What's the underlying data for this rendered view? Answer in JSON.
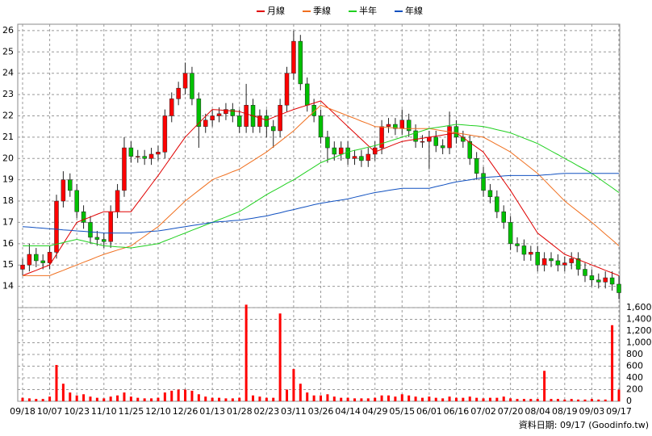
{
  "chart_data": {
    "type": "candlestick",
    "legend": "top",
    "footer": "資料日期: 09/17 (Goodinfo.tw)",
    "categories": [
      "09/18",
      null,
      null,
      null,
      "10/07",
      null,
      null,
      null,
      "10/23",
      null,
      null,
      null,
      "11/10",
      null,
      null,
      null,
      "11/25",
      null,
      null,
      null,
      "12/10",
      null,
      null,
      null,
      "12/26",
      null,
      null,
      null,
      "01/13",
      null,
      null,
      null,
      "01/28",
      null,
      null,
      null,
      "02/23",
      null,
      null,
      null,
      "03/11",
      null,
      null,
      null,
      "03/26",
      null,
      null,
      null,
      "04/14",
      null,
      null,
      null,
      "04/29",
      null,
      null,
      null,
      "05/15",
      null,
      null,
      null,
      "06/01",
      null,
      null,
      null,
      "06/16",
      null,
      null,
      null,
      "07/02",
      null,
      null,
      null,
      "07/20",
      null,
      null,
      null,
      "08/04",
      null,
      null,
      null,
      "08/19",
      null,
      null,
      null,
      "09/03",
      null,
      null,
      null,
      "09/17"
    ],
    "open": [
      14.8,
      15.0,
      15.5,
      15.2,
      15.1,
      15.6,
      18.0,
      19.0,
      18.5,
      17.5,
      17.0,
      16.3,
      16.2,
      16.1,
      17.5,
      18.5,
      20.5,
      20.1,
      20.1,
      20.0,
      20.2,
      20.3,
      22.0,
      22.8,
      23.3,
      24.0,
      22.8,
      21.5,
      21.8,
      22.0,
      22.1,
      22.3,
      22.0,
      21.5,
      22.5,
      21.5,
      22.0,
      21.5,
      21.3,
      22.5,
      24.0,
      25.5,
      23.5,
      22.5,
      22.0,
      21.0,
      20.5,
      20.2,
      20.5,
      20.0,
      20.1,
      19.9,
      20.2,
      20.5,
      21.5,
      21.6,
      21.4,
      21.8,
      21.3,
      20.8,
      20.8,
      21.0,
      20.6,
      20.5,
      21.5,
      21.0,
      20.8,
      20.0,
      19.3,
      18.5,
      18.2,
      17.5,
      17.0,
      16.0,
      15.9,
      15.5,
      15.6,
      15.0,
      15.3,
      15.2,
      15.0,
      15.1,
      15.3,
      14.8,
      14.5,
      14.3,
      14.2,
      14.4,
      14.1
    ],
    "high": [
      15.3,
      16.0,
      15.8,
      15.5,
      15.9,
      18.3,
      19.4,
      19.3,
      18.8,
      17.8,
      17.3,
      16.6,
      16.5,
      17.8,
      18.8,
      21.0,
      20.8,
      20.4,
      20.4,
      20.5,
      20.6,
      22.3,
      23.1,
      23.6,
      24.5,
      24.3,
      23.1,
      22.1,
      22.3,
      22.4,
      22.6,
      22.6,
      22.3,
      23.5,
      22.8,
      22.3,
      22.3,
      21.8,
      22.8,
      24.3,
      26.0,
      25.8,
      23.8,
      22.8,
      22.3,
      21.3,
      20.8,
      20.8,
      20.8,
      20.4,
      20.4,
      20.5,
      20.8,
      21.8,
      21.9,
      21.9,
      22.3,
      22.1,
      21.6,
      21.1,
      21.3,
      21.3,
      20.9,
      22.2,
      21.8,
      21.3,
      21.1,
      20.3,
      19.6,
      18.8,
      18.5,
      17.8,
      17.3,
      16.3,
      16.2,
      15.9,
      15.9,
      15.6,
      15.6,
      15.5,
      15.4,
      15.6,
      15.6,
      15.1,
      14.8,
      14.6,
      14.7,
      14.7,
      14.5
    ],
    "low": [
      14.5,
      14.7,
      14.9,
      14.8,
      14.8,
      15.3,
      17.7,
      18.2,
      17.2,
      16.7,
      16.0,
      15.9,
      15.8,
      15.8,
      17.2,
      18.2,
      19.8,
      19.8,
      19.7,
      19.7,
      19.9,
      20.0,
      21.7,
      22.5,
      23.0,
      22.5,
      20.5,
      21.2,
      21.5,
      21.7,
      21.8,
      21.7,
      21.2,
      21.2,
      21.2,
      21.2,
      21.0,
      20.5,
      21.0,
      22.2,
      23.7,
      23.2,
      22.2,
      21.7,
      20.7,
      19.8,
      19.9,
      19.9,
      19.7,
      19.7,
      19.6,
      19.6,
      19.9,
      20.2,
      21.2,
      21.1,
      21.1,
      21.0,
      20.5,
      20.5,
      19.5,
      20.3,
      20.2,
      20.2,
      20.7,
      20.5,
      19.7,
      19.0,
      18.2,
      17.9,
      17.2,
      16.7,
      15.7,
      15.6,
      15.2,
      15.2,
      14.7,
      14.7,
      14.9,
      14.7,
      14.7,
      14.8,
      14.5,
      14.2,
      14.0,
      13.9,
      13.9,
      13.8,
      13.4
    ],
    "close": [
      15.0,
      15.5,
      15.2,
      15.1,
      15.6,
      18.0,
      19.0,
      18.5,
      17.5,
      17.0,
      16.3,
      16.2,
      16.1,
      17.5,
      18.5,
      20.5,
      20.1,
      20.1,
      20.0,
      20.2,
      20.3,
      22.0,
      22.8,
      23.3,
      24.0,
      22.8,
      21.5,
      21.8,
      22.0,
      22.1,
      22.3,
      22.0,
      21.5,
      22.5,
      21.5,
      22.0,
      21.5,
      21.3,
      22.5,
      24.0,
      25.5,
      23.5,
      22.5,
      22.0,
      21.0,
      20.5,
      20.2,
      20.5,
      20.0,
      20.1,
      19.9,
      20.2,
      20.5,
      21.5,
      21.6,
      21.4,
      21.8,
      21.3,
      20.8,
      20.8,
      21.0,
      20.6,
      20.5,
      21.5,
      21.0,
      20.8,
      20.0,
      19.3,
      18.5,
      18.2,
      17.5,
      17.0,
      16.0,
      15.9,
      15.5,
      15.6,
      15.0,
      15.3,
      15.2,
      15.0,
      15.1,
      15.3,
      14.8,
      14.5,
      14.3,
      14.2,
      14.4,
      14.1,
      13.7
    ],
    "volume": [
      60,
      50,
      40,
      40,
      80,
      620,
      300,
      150,
      100,
      120,
      80,
      60,
      50,
      80,
      100,
      150,
      80,
      60,
      50,
      50,
      60,
      150,
      180,
      200,
      200,
      180,
      120,
      80,
      60,
      60,
      50,
      50,
      60,
      1650,
      100,
      80,
      60,
      60,
      1500,
      200,
      550,
      300,
      150,
      100,
      100,
      120,
      80,
      60,
      60,
      50,
      50,
      50,
      60,
      100,
      100,
      80,
      120,
      100,
      80,
      60,
      80,
      60,
      50,
      80,
      60,
      60,
      80,
      60,
      50,
      60,
      60,
      80,
      50,
      40,
      40,
      40,
      40,
      520,
      40,
      40,
      30,
      40,
      30,
      30,
      40,
      30,
      30,
      1300,
      200
    ],
    "up_color": "#ff0000",
    "down_color": "#00c000",
    "volume_color": "#ff0000",
    "series": [
      {
        "name": "月線",
        "color": "#e00000",
        "values": [
          14.5,
          14.63,
          14.75,
          14.88,
          15.0,
          15.5,
          16.0,
          16.5,
          17.0,
          17.13,
          17.25,
          17.38,
          17.5,
          17.5,
          17.5,
          17.5,
          17.5,
          17.93,
          18.35,
          18.78,
          19.2,
          19.65,
          20.1,
          20.55,
          21.0,
          21.33,
          21.65,
          21.98,
          22.3,
          22.28,
          22.25,
          22.23,
          22.2,
          22.1,
          22.0,
          21.9,
          21.8,
          21.93,
          22.05,
          22.18,
          22.3,
          22.4,
          22.5,
          22.6,
          22.7,
          22.4,
          22.1,
          21.8,
          21.5,
          21.2,
          20.9,
          20.6,
          20.3,
          20.43,
          20.55,
          20.68,
          20.8,
          20.85,
          20.9,
          20.95,
          21.0,
          21.05,
          21.1,
          21.15,
          21.2,
          20.98,
          20.75,
          20.53,
          20.3,
          19.85,
          19.4,
          18.95,
          18.5,
          18.0,
          17.5,
          17.0,
          16.5,
          16.25,
          16.0,
          15.75,
          15.5,
          15.38,
          15.25,
          15.13,
          15.0,
          14.88,
          14.75,
          14.63,
          14.5
        ]
      },
      {
        "name": "季線",
        "color": "#f07020",
        "values": [
          14.5,
          14.5,
          14.5,
          14.5,
          14.5,
          14.63,
          14.75,
          14.88,
          15.0,
          15.13,
          15.25,
          15.38,
          15.5,
          15.6,
          15.7,
          15.8,
          15.9,
          16.13,
          16.35,
          16.58,
          16.8,
          17.1,
          17.4,
          17.7,
          18.0,
          18.25,
          18.5,
          18.75,
          19.0,
          19.13,
          19.25,
          19.38,
          19.5,
          19.7,
          19.9,
          20.1,
          20.3,
          20.55,
          20.8,
          21.05,
          21.3,
          21.6,
          21.9,
          22.2,
          22.5,
          22.38,
          22.25,
          22.13,
          22.0,
          21.88,
          21.75,
          21.63,
          21.5,
          21.48,
          21.45,
          21.43,
          21.4,
          21.4,
          21.4,
          21.4,
          21.4,
          21.35,
          21.3,
          21.25,
          21.2,
          21.15,
          21.1,
          21.05,
          21.0,
          20.83,
          20.65,
          20.48,
          20.3,
          20.05,
          19.8,
          19.55,
          19.3,
          18.98,
          18.65,
          18.33,
          18.0,
          17.75,
          17.5,
          17.25,
          17.0,
          16.73,
          16.45,
          16.18,
          15.9
        ]
      },
      {
        "name": "半年",
        "color": "#20d020",
        "values": [
          15.9,
          15.9,
          15.9,
          15.9,
          15.9,
          15.98,
          16.05,
          16.13,
          16.2,
          16.13,
          16.05,
          15.98,
          15.9,
          15.88,
          15.85,
          15.83,
          15.8,
          15.85,
          15.9,
          15.95,
          16.0,
          16.13,
          16.25,
          16.38,
          16.5,
          16.63,
          16.75,
          16.88,
          17.0,
          17.13,
          17.25,
          17.38,
          17.5,
          17.7,
          17.9,
          18.1,
          18.3,
          18.48,
          18.65,
          18.83,
          19.0,
          19.2,
          19.4,
          19.6,
          19.8,
          19.93,
          20.05,
          20.18,
          20.3,
          20.38,
          20.45,
          20.53,
          20.6,
          20.7,
          20.8,
          20.9,
          21.0,
          21.1,
          21.2,
          21.3,
          21.4,
          21.45,
          21.5,
          21.55,
          21.6,
          21.58,
          21.55,
          21.53,
          21.5,
          21.43,
          21.35,
          21.28,
          21.2,
          21.08,
          20.95,
          20.83,
          20.7,
          20.53,
          20.35,
          20.18,
          20.0,
          19.83,
          19.65,
          19.48,
          19.3,
          19.08,
          18.85,
          18.63,
          18.4
        ]
      },
      {
        "name": "年線",
        "color": "#1050c0",
        "values": [
          16.8,
          16.78,
          16.75,
          16.73,
          16.7,
          16.68,
          16.65,
          16.63,
          16.6,
          16.58,
          16.55,
          16.53,
          16.5,
          16.5,
          16.5,
          16.5,
          16.5,
          16.53,
          16.55,
          16.58,
          16.6,
          16.65,
          16.7,
          16.75,
          16.8,
          16.85,
          16.9,
          16.95,
          17.0,
          17.03,
          17.05,
          17.08,
          17.1,
          17.15,
          17.2,
          17.25,
          17.3,
          17.38,
          17.45,
          17.53,
          17.6,
          17.68,
          17.75,
          17.83,
          17.9,
          17.95,
          18.0,
          18.05,
          18.1,
          18.18,
          18.25,
          18.33,
          18.4,
          18.45,
          18.5,
          18.55,
          18.6,
          18.6,
          18.6,
          18.6,
          18.6,
          18.68,
          18.75,
          18.83,
          18.9,
          18.95,
          19.0,
          19.05,
          19.1,
          19.13,
          19.15,
          19.18,
          19.2,
          19.2,
          19.2,
          19.2,
          19.2,
          19.23,
          19.25,
          19.28,
          19.3,
          19.3,
          19.3,
          19.3,
          19.3,
          19.3,
          19.3,
          19.3,
          19.3
        ]
      }
    ],
    "ylim": [
      13,
      26.3
    ],
    "yticks": [
      14,
      15,
      16,
      17,
      18,
      19,
      20,
      21,
      22,
      23,
      24,
      25,
      26
    ],
    "y2lim": [
      0,
      1600
    ],
    "y2ticks": [
      0,
      200,
      400,
      600,
      800,
      {
        "value": 1000,
        "label": "1,000"
      },
      {
        "value": 1200,
        "label": "1,200"
      },
      {
        "value": 1400,
        "label": "1,400"
      },
      {
        "value": 1600,
        "label": "1,600"
      }
    ],
    "grid": true
  }
}
